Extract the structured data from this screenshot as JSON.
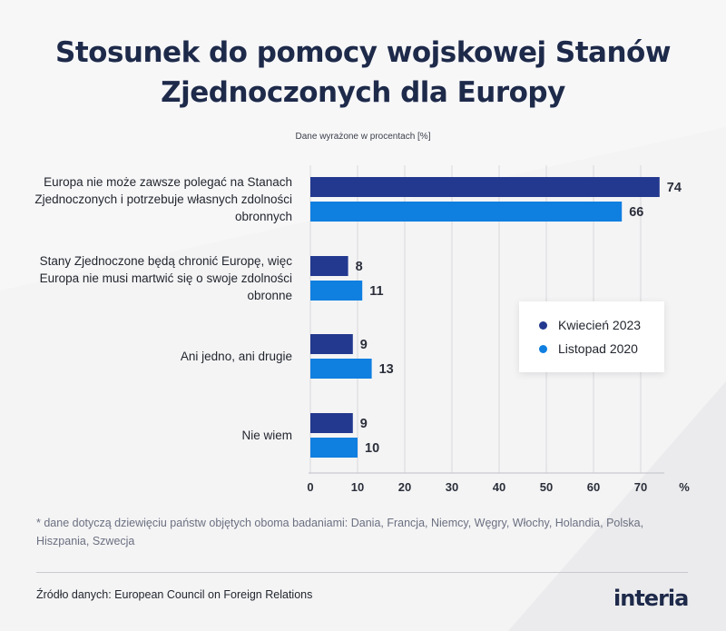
{
  "title": "Stosunek do pomocy wojskowej Stanów Zjednoczonych dla Europy",
  "subtitle": "Dane wyrażone w procentach [%]",
  "footnote": "* dane dotyczą dziewięciu państw objętych oboma badaniami: Dania, Francja, Niemcy, Węgry, Włochy, Holandia, Polska, Hiszpania, Szwecja",
  "source": "Źródło danych: European Council on Foreign Relations",
  "logo": "interia",
  "colors": {
    "series1": "#23398f",
    "series2": "#0f7fe0",
    "grid": "#d8d8dc"
  },
  "chart_data": {
    "type": "bar",
    "orientation": "horizontal",
    "title": "Stosunek do pomocy wojskowej Stanów Zjednoczonych dla Europy",
    "subtitle": "Dane wyrażone w procentach [%]",
    "categories": [
      "Europa nie może zawsze polegać na Stanach Zjednoczonych i potrzebuje własnych zdolności obronnych",
      "Stany Zjednoczone będą chronić Europę, więc Europa nie musi martwić się o swoje zdolności obronne",
      "Ani jedno, ani drugie",
      "Nie wiem"
    ],
    "series": [
      {
        "name": "Kwiecień 2023",
        "color": "#23398f",
        "values": [
          74,
          8,
          9,
          9
        ]
      },
      {
        "name": "Listopad 2020",
        "color": "#0f7fe0",
        "values": [
          66,
          11,
          13,
          10
        ]
      }
    ],
    "xlim": [
      0,
      75
    ],
    "xticks": [
      0,
      10,
      20,
      30,
      40,
      50,
      60,
      70
    ],
    "xunit": "%",
    "grid": true,
    "legend": "right"
  }
}
